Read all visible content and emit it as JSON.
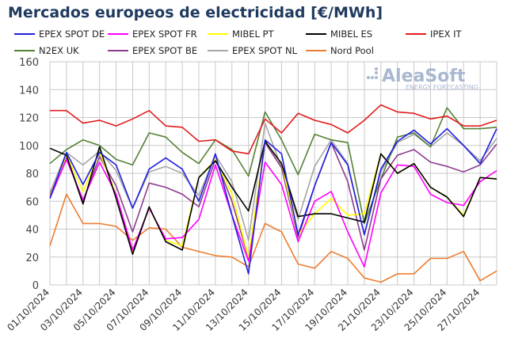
{
  "chart_data": {
    "type": "line",
    "title": "Mercados europeos de electricidad [€/MWh]",
    "xlabel": "",
    "ylabel": "",
    "ylim": [
      0,
      160
    ],
    "yticks": [
      0,
      20,
      40,
      60,
      80,
      100,
      120,
      140,
      160
    ],
    "grid": true,
    "legend_position": "top",
    "watermark": {
      "brand": "AleaSoft",
      "tagline": "ENERGY FORECASTING"
    },
    "x": [
      "01/10/2024",
      "02/10/2024",
      "03/10/2024",
      "04/10/2024",
      "05/10/2024",
      "06/10/2024",
      "07/10/2024",
      "08/10/2024",
      "09/10/2024",
      "10/10/2024",
      "11/10/2024",
      "12/10/2024",
      "13/10/2024",
      "14/10/2024",
      "15/10/2024",
      "16/10/2024",
      "17/10/2024",
      "18/10/2024",
      "19/10/2024",
      "20/10/2024",
      "21/10/2024",
      "22/10/2024",
      "23/10/2024",
      "24/10/2024",
      "25/10/2024",
      "26/10/2024",
      "27/10/2024",
      "28/10/2024"
    ],
    "xtick_labels": [
      "01/10/2024",
      "03/10/2024",
      "05/10/2024",
      "07/10/2024",
      "09/10/2024",
      "11/10/2024",
      "13/10/2024",
      "15/10/2024",
      "17/10/2024",
      "19/10/2024",
      "21/10/2024",
      "23/10/2024",
      "25/10/2024",
      "27/10/2024"
    ],
    "series": [
      {
        "name": "Nord Pool",
        "color": "#ed7d31",
        "values": [
          28,
          65,
          44,
          44,
          42,
          32,
          41,
          40,
          27,
          24,
          21,
          20,
          13,
          44,
          38,
          15,
          12,
          24,
          19,
          5,
          2,
          8,
          8,
          19,
          19,
          24,
          3,
          10
        ]
      },
      {
        "name": "EPEX SPOT NL",
        "color": "#a6a6a6",
        "values": [
          66,
          95,
          86,
          96,
          82,
          55,
          81,
          85,
          80,
          64,
          93,
          74,
          32,
          116,
          84,
          47,
          85,
          104,
          87,
          36,
          81,
          102,
          108,
          99,
          109,
          100,
          89,
          105
        ]
      },
      {
        "name": "N2EX UK",
        "color": "#548235",
        "values": [
          87,
          97,
          104,
          100,
          90,
          86,
          109,
          106,
          95,
          87,
          104,
          97,
          78,
          124,
          104,
          79,
          108,
          104,
          102,
          44,
          76,
          106,
          109,
          99,
          127,
          112,
          112,
          113
        ]
      },
      {
        "name": "EPEX SPOT BE",
        "color": "#8e3a8e",
        "values": [
          64,
          92,
          60,
          92,
          71,
          38,
          73,
          70,
          65,
          56,
          90,
          60,
          19,
          102,
          84,
          34,
          71,
          102,
          74,
          25,
          76,
          93,
          97,
          88,
          85,
          81,
          86,
          101
        ]
      },
      {
        "name": "MIBEL PT",
        "color": "#ffff00",
        "values": [
          63,
          93,
          67,
          95,
          65,
          24,
          55,
          32,
          28,
          77,
          90,
          65,
          20,
          103,
          87,
          36,
          51,
          62,
          50,
          51,
          94,
          80,
          87,
          70,
          63,
          50,
          77,
          76
        ]
      },
      {
        "name": "EPEX SPOT FR",
        "color": "#ff00ff",
        "values": [
          62,
          90,
          61,
          88,
          65,
          25,
          55,
          33,
          34,
          47,
          86,
          50,
          17,
          88,
          72,
          31,
          60,
          67,
          38,
          13,
          66,
          86,
          85,
          65,
          59,
          57,
          74,
          82
        ]
      },
      {
        "name": "MIBEL ES",
        "color": "#000000",
        "values": [
          98,
          93,
          58,
          99,
          62,
          22,
          56,
          31,
          25,
          77,
          89,
          70,
          53,
          103,
          87,
          49,
          51,
          51,
          48,
          45,
          94,
          80,
          87,
          70,
          63,
          49,
          77,
          76
        ]
      },
      {
        "name": "EPEX SPOT DE",
        "color": "#1f1fe0",
        "values": [
          62,
          95,
          72,
          95,
          86,
          55,
          83,
          91,
          83,
          60,
          94,
          50,
          8,
          104,
          94,
          36,
          71,
          102,
          86,
          36,
          83,
          103,
          111,
          101,
          112,
          100,
          87,
          112
        ]
      },
      {
        "name": "IPEX IT",
        "color": "#e31a1c",
        "values": [
          125,
          125,
          116,
          118,
          114,
          119,
          125,
          114,
          113,
          103,
          104,
          96,
          94,
          119,
          109,
          123,
          118,
          115,
          109,
          118,
          129,
          124,
          123,
          119,
          121,
          114,
          114,
          118
        ]
      }
    ],
    "legend": [
      [
        "EPEX SPOT DE",
        "#1f1fe0"
      ],
      [
        "EPEX SPOT FR",
        "#ff00ff"
      ],
      [
        "MIBEL PT",
        "#ffff00"
      ],
      [
        "MIBEL ES",
        "#000000"
      ],
      [
        "IPEX IT",
        "#e31a1c"
      ],
      [
        "N2EX UK",
        "#548235"
      ],
      [
        "EPEX SPOT BE",
        "#8e3a8e"
      ],
      [
        "EPEX SPOT NL",
        "#a6a6a6"
      ],
      [
        "Nord Pool",
        "#ed7d31"
      ]
    ]
  }
}
